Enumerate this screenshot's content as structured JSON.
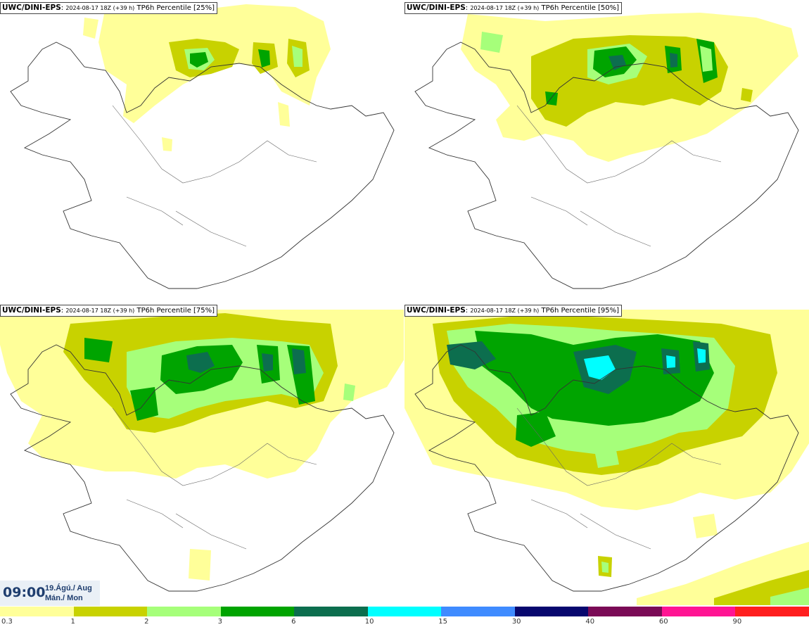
{
  "panels": [
    {
      "model": "UWC/DINI-EPS",
      "run": "2024-08-17 18Z (+39 h)",
      "product": "TP6h Percentile [25%]"
    },
    {
      "model": "UWC/DINI-EPS",
      "run": "2024-08-17 18Z (+39 h)",
      "product": "TP6h Percentile [50%]"
    },
    {
      "model": "UWC/DINI-EPS",
      "run": "2024-08-17 18Z (+39 h)",
      "product": "TP6h Percentile [75%]"
    },
    {
      "model": "UWC/DINI-EPS",
      "run": "2024-08-17 18Z (+39 h)",
      "product": "TP6h Percentile [95%]"
    }
  ],
  "valid_time": {
    "time": "09:00",
    "date": "19.Ágú./ Aug",
    "weekday": "Mán./ Mon"
  },
  "legend": {
    "levels": [
      "0.3",
      "1",
      "2",
      "3",
      "6",
      "10",
      "15",
      "30",
      "40",
      "60",
      "90"
    ],
    "colors": [
      "#ffff99",
      "#c8d200",
      "#a6ff7a",
      "#00a400",
      "#0c6e4e",
      "#00ffff",
      "#3f8bff",
      "#07076e",
      "#7a0a56",
      "#ff1493",
      "#ff1f1f"
    ]
  }
}
